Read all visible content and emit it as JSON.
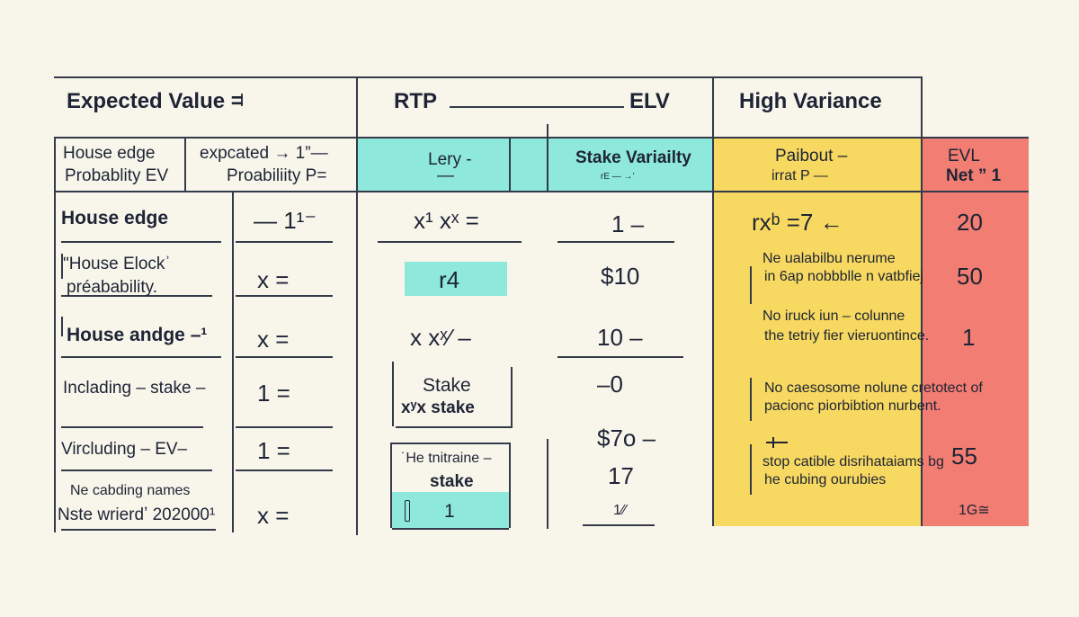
{
  "colors": {
    "background": "#f8f5ea",
    "cyan": "#8ee8dc",
    "yellow": "#f7d860",
    "red": "#f27d73",
    "ink": "#1d2435"
  },
  "top_titles": {
    "expected_value": "Expected Value =",
    "rtp": "RTP",
    "elv": "ELV",
    "high_variance": "High Variance"
  },
  "header": {
    "c1a": "House edge",
    "c1b": "Probablity EV",
    "c2a": "expcated → 1”—",
    "c2b": "Proabiliity  P=",
    "c3a": "Lery -",
    "c3b": "—",
    "c4a": "Stake Variailty",
    "c4b": "rE — →’",
    "c5a": "Paibout –",
    "c5b": "irrat P   —",
    "c6a": "EVL",
    "c6b": "Net ” 1"
  },
  "rows": {
    "r1": {
      "label": "House edge",
      "c2": "—  1¹⁻",
      "c3": "x¹ xˣ =",
      "c4": "1 –",
      "c5": "rxᵇ =7  ←",
      "c6": "20"
    },
    "r2": {
      "label_a": "ʺHouse Elockʾ",
      "label_b": "préabability.",
      "c2": "x  =",
      "c3": "r4",
      "c4": "$10",
      "c5a": "Ne ualabilbu nerume",
      "c5b": "in 6ap nobbblle n  vatbfiej",
      "c6": "50"
    },
    "r3": {
      "label": "House andge –¹",
      "c2": "x  =",
      "c3": "x  xˣ⁄ –",
      "c4": "10 –",
      "c5a": "No iruck iun – colunne",
      "c5b": "the tetriy fier vieruontince.",
      "c6": "1"
    },
    "r4": {
      "label": "Inclading – stake –",
      "c2": "1  =",
      "c3a": "Stake",
      "c3b": "xʸx stake",
      "c4": "–0",
      "c5a": "No caesosome nolune cretotect of",
      "c5b": "pacionc piorbibtion nurbent.",
      "c6": ""
    },
    "r5": {
      "label": "Vircluding – EV–",
      "c2": "1  =",
      "c3a": "˙He tnitraine –",
      "c3b": "stake",
      "c4a": "$7o  –",
      "c4b": "17",
      "c5a": "stop catible disrihataiams bg",
      "c5b": "he cubing ourubies",
      "c6": "55"
    },
    "r6": {
      "label_a": "Ne cabding names",
      "label_b": "Nste wrierdʼ 202000¹",
      "c2": "x  =",
      "c3": "1",
      "c4": "1⁄⁄",
      "c6": "1G≅"
    }
  },
  "icons": {
    "arrow": "left-arrow-icon",
    "plus": "plus-icon"
  }
}
